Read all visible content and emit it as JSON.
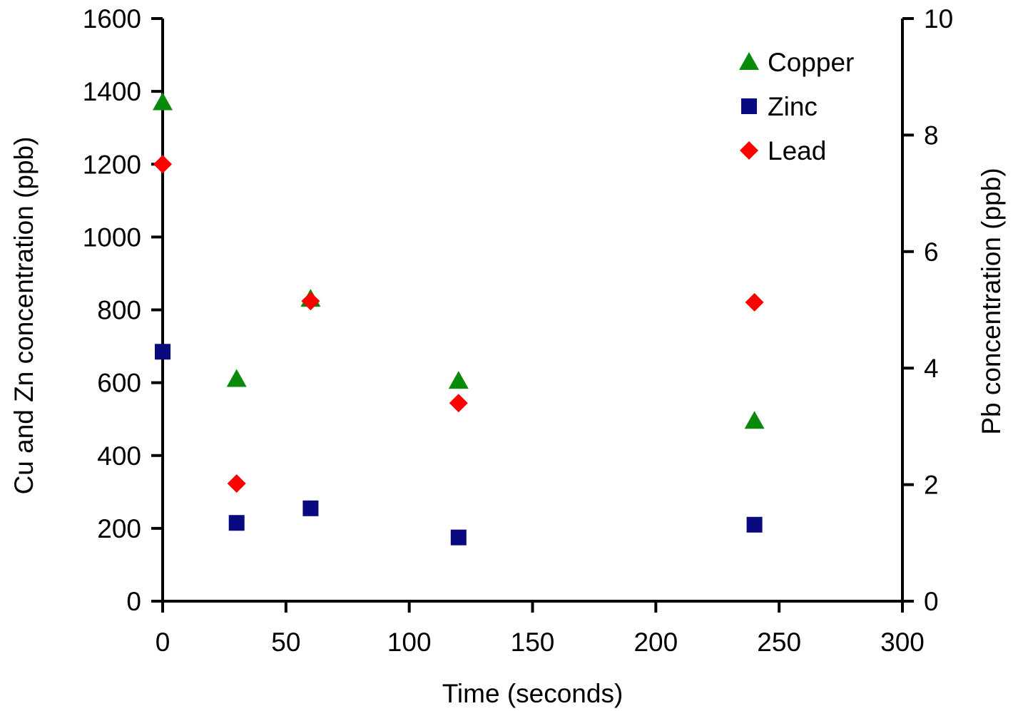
{
  "chart_data": {
    "type": "scatter",
    "title": "",
    "xlabel": "Time (seconds)",
    "ylabel_left": "Cu and Zn concentration (ppb)",
    "ylabel_right": "Pb concentration (ppb)",
    "xlim": [
      0,
      300
    ],
    "ylim_left": [
      0,
      1600
    ],
    "ylim_right": [
      0,
      10
    ],
    "x_ticks": [
      0,
      50,
      100,
      150,
      200,
      250,
      300
    ],
    "y_left_ticks": [
      0,
      200,
      400,
      600,
      800,
      1000,
      1200,
      1400,
      1600
    ],
    "y_right_ticks": [
      0,
      2,
      4,
      6,
      8,
      10
    ],
    "grid": false,
    "legend_position": "top-right",
    "series": [
      {
        "name": "Copper",
        "axis": "left",
        "marker": "triangle",
        "color": "#0a8a0a",
        "points": [
          [
            0,
            1370
          ],
          [
            30,
            610
          ],
          [
            60,
            830
          ],
          [
            120,
            605
          ],
          [
            240,
            495
          ]
        ]
      },
      {
        "name": "Zinc",
        "axis": "left",
        "marker": "square",
        "color": "#0a0a80",
        "points": [
          [
            0,
            685
          ],
          [
            30,
            215
          ],
          [
            60,
            255
          ],
          [
            120,
            175
          ],
          [
            240,
            210
          ]
        ]
      },
      {
        "name": "Lead",
        "axis": "right",
        "marker": "diamond",
        "color": "#ff0000",
        "points": [
          [
            0,
            7.5
          ],
          [
            30,
            2.02
          ],
          [
            60,
            5.15
          ],
          [
            120,
            3.4
          ],
          [
            240,
            5.13
          ]
        ]
      }
    ]
  }
}
